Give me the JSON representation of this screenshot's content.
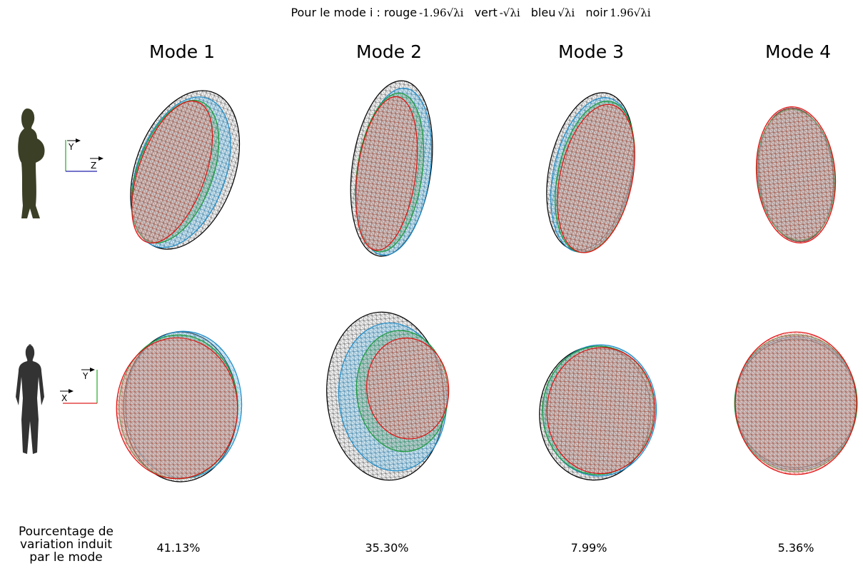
{
  "header": {
    "prefix": "Pour le mode i :",
    "items": [
      {
        "name": "rouge",
        "formula": "-1.96√λi"
      },
      {
        "name": "vert",
        "formula": "-√λi"
      },
      {
        "name": "bleu",
        "formula": "√λi"
      },
      {
        "name": "noir",
        "formula": "1.96√λi"
      }
    ]
  },
  "modes": [
    {
      "title": "Mode 1",
      "percentage": "41.13%"
    },
    {
      "title": "Mode 2",
      "percentage": "35.30%"
    },
    {
      "title": "Mode 3",
      "percentage": "7.99%"
    },
    {
      "title": "Mode 4",
      "percentage": "5.36%"
    }
  ],
  "axes": {
    "top": {
      "vertical": "Y",
      "horizontal": "Z"
    },
    "bottom": {
      "vertical": "Y",
      "horizontal": "X"
    }
  },
  "row_label": [
    "Pourcentage de",
    "variation induit",
    "par le mode"
  ]
}
